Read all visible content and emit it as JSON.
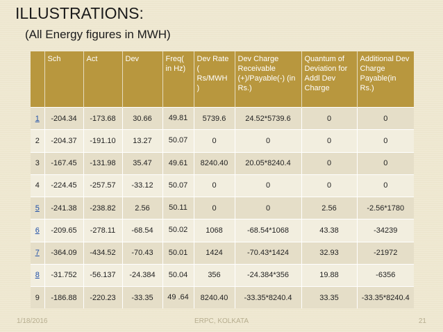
{
  "slide": {
    "title": "ILLUSTRATIONS:",
    "subtitle": "(All Energy figures in MWH)"
  },
  "table": {
    "headers": [
      "",
      "Sch",
      "Act",
      "Dev",
      "Freq( in Hz)",
      "Dev Rate ( Rs/MWH )",
      "Dev Charge Receivable (+)/Payable(-) (in Rs.)",
      "Quantum of Deviation for Addl Dev Charge",
      "Additional Dev Charge Payable(in Rs.)"
    ],
    "rows": [
      [
        "1",
        "-204.34",
        "-173.68",
        "30.66",
        "49.81",
        "5739.6",
        "24.52*5739.6",
        "0",
        "0"
      ],
      [
        "2",
        "-204.37",
        "-191.10",
        "13.27",
        "50.07",
        "0",
        "0",
        "0",
        "0"
      ],
      [
        "3",
        "-167.45",
        "-131.98",
        "35.47",
        "49.61",
        "8240.40",
        "20.05*8240.4",
        "0",
        "0"
      ],
      [
        "4",
        "-224.45",
        "-257.57",
        "-33.12",
        "50.07",
        "0",
        "0",
        "0",
        "0"
      ],
      [
        "5",
        "-241.38",
        "-238.82",
        "2.56",
        "50.11",
        "0",
        "0",
        "2.56",
        "-2.56*1780"
      ],
      [
        "6",
        "-209.65",
        "-278.11",
        "-68.54",
        "50.02",
        "1068",
        "-68.54*1068",
        "43.38",
        "-34239"
      ],
      [
        "7",
        "-364.09",
        "-434.52",
        "-70.43",
        "50.01",
        "1424",
        "-70.43*1424",
        "32.93",
        "-21972"
      ],
      [
        "8",
        "-31.752",
        "-56.137",
        "-24.384",
        "50.04",
        "356",
        "-24.384*356",
        "19.88",
        "-6356"
      ],
      [
        "9",
        "-186.88",
        "-220.23",
        "-33.35",
        "49 .64",
        "8240.40",
        "-33.35*8240.4",
        "33.35",
        "-33.35*8240.4"
      ]
    ],
    "linked_rows": [
      "1",
      "5",
      "6",
      "7",
      "8"
    ]
  },
  "footer": {
    "date": "1/18/2016",
    "center": "ERPC, KOLKATA",
    "page_number": "21"
  },
  "colors": {
    "background": "#efe8d0",
    "header_fill": "#b8973e",
    "row_dark": "#e5dec8",
    "row_light": "#f2eedf",
    "link": "#1f4fa8"
  }
}
